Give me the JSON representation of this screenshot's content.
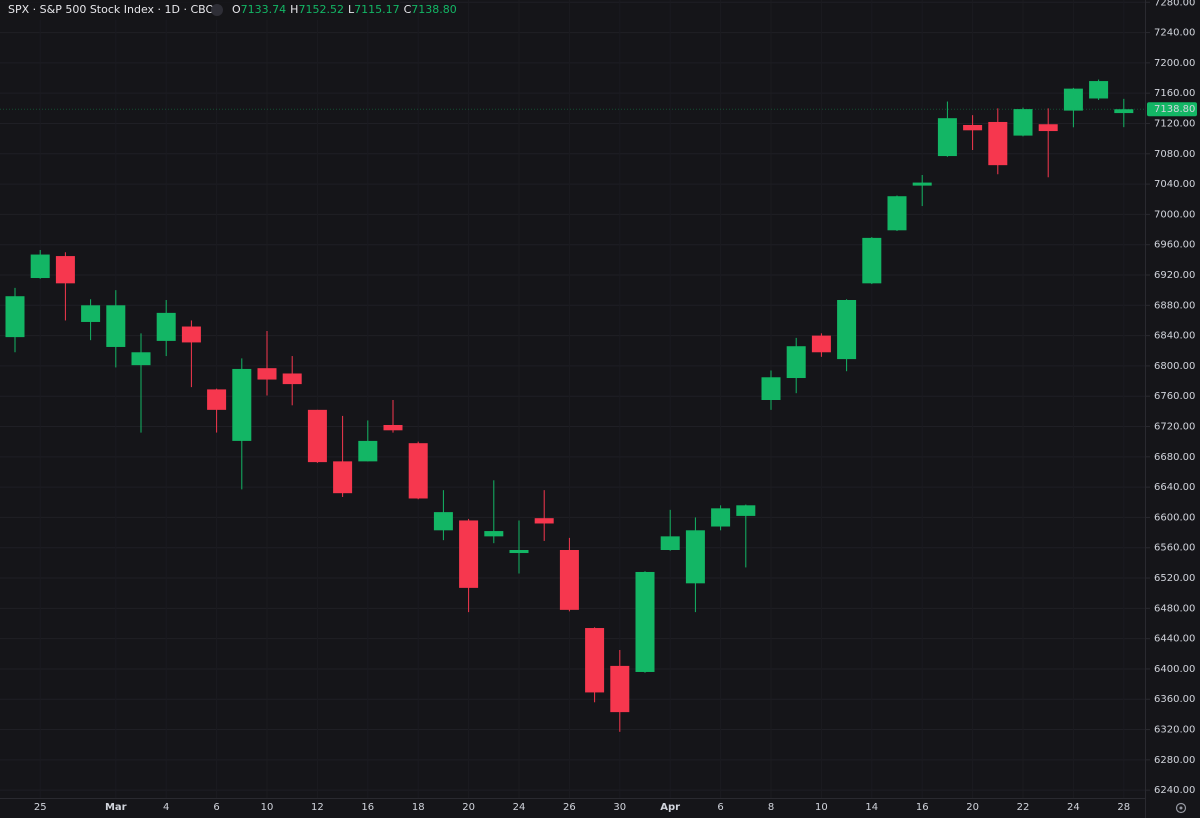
{
  "chart_data": {
    "type": "candlestick",
    "title": "SPX · S&P 500 Stock Index · 1D · CBOE",
    "legend_letters": [
      "O",
      "H",
      "L",
      "C"
    ],
    "legend_values": [
      "7133.74",
      "7152.52",
      "7115.17",
      "7138.80"
    ],
    "last_price_label": "7138.80",
    "categories": [
      null,
      "25",
      null,
      null,
      "Mar",
      null,
      "4",
      null,
      "6",
      null,
      "10",
      null,
      "12",
      null,
      "16",
      null,
      "18",
      null,
      "20",
      null,
      "24",
      null,
      "26",
      null,
      "30",
      null,
      "Apr",
      null,
      "6",
      null,
      "8",
      null,
      "10",
      null,
      "14",
      null,
      "16",
      null,
      "20",
      null,
      "22",
      null,
      "24",
      null,
      "28"
    ],
    "open": [
      6838,
      6916,
      6945,
      6858,
      6825,
      6801,
      6833,
      6852,
      6769,
      6701,
      6797,
      6790,
      6742,
      6674,
      6674,
      6722,
      6698,
      6583,
      6596,
      6575,
      6553,
      6599,
      6557,
      6454,
      6404,
      6396,
      6557,
      6513,
      6588,
      6602,
      6755,
      6784,
      6840,
      6809,
      6909,
      6979,
      7038,
      7077,
      7118,
      7122,
      7104,
      7119,
      7137,
      7153,
      7133.74
    ],
    "high": [
      6903,
      6953,
      6950,
      6888,
      6900,
      6843,
      6887,
      6860,
      6770,
      6810,
      6846,
      6813,
      6742,
      6734,
      6728,
      6755,
      6700,
      6636,
      6598,
      6649,
      6596,
      6636,
      6573,
      6455,
      6425,
      6529,
      6610,
      6600,
      6616,
      6617,
      6794,
      6837,
      6843,
      6888,
      6970,
      7025,
      7052,
      7149,
      7131,
      7140,
      7141,
      7140,
      7167,
      7178,
      7152.52
    ],
    "low": [
      6818,
      6915,
      6860,
      6834,
      6798,
      6712,
      6813,
      6772,
      6712,
      6637,
      6761,
      6748,
      6672,
      6627,
      6674,
      6712,
      6624,
      6570,
      6475,
      6566,
      6526,
      6569,
      6476,
      6356,
      6317,
      6395,
      6556,
      6475,
      6583,
      6534,
      6742,
      6764,
      6812,
      6793,
      6908,
      6978,
      7011,
      7076,
      7085,
      7053,
      7103,
      7049,
      7115,
      7151,
      7115.17
    ],
    "close": [
      6892,
      6947,
      6909,
      6880,
      6880,
      6818,
      6870,
      6831,
      6742,
      6796,
      6782,
      6776,
      6673,
      6632,
      6701,
      6715,
      6625,
      6607,
      6507,
      6582,
      6557,
      6592,
      6478,
      6369,
      6343,
      6528,
      6575,
      6583,
      6612,
      6616,
      6785,
      6826,
      6818,
      6887,
      6969,
      7024,
      7042,
      7127,
      7111,
      7065,
      7139,
      7110,
      7166,
      7176,
      7138.8
    ],
    "up_color": "#13b665",
    "down_color": "#f6374e",
    "ylim": [
      6227,
      7283
    ],
    "yticks": [
      {
        "value": 6240,
        "label": "6240.00"
      },
      {
        "value": 6280,
        "label": "6280.00"
      },
      {
        "value": 6320,
        "label": "6320.00"
      },
      {
        "value": 6360,
        "label": "6360.00"
      },
      {
        "value": 6400,
        "label": "6400.00"
      },
      {
        "value": 6440,
        "label": "6440.00"
      },
      {
        "value": 6480,
        "label": "6480.00"
      },
      {
        "value": 6520,
        "label": "6520.00"
      },
      {
        "value": 6560,
        "label": "6560.00"
      },
      {
        "value": 6600,
        "label": "6600.00"
      },
      {
        "value": 6640,
        "label": "6640.00"
      },
      {
        "value": 6680,
        "label": "6680.00"
      },
      {
        "value": 6720,
        "label": "6720.00"
      },
      {
        "value": 6760,
        "label": "6760.00"
      },
      {
        "value": 6800,
        "label": "6800.00"
      },
      {
        "value": 6840,
        "label": "6840.00"
      },
      {
        "value": 6880,
        "label": "6880.00"
      },
      {
        "value": 6920,
        "label": "6920.00"
      },
      {
        "value": 6960,
        "label": "6960.00"
      },
      {
        "value": 7000,
        "label": "7000.00"
      },
      {
        "value": 7040,
        "label": "7040.00"
      },
      {
        "value": 7080,
        "label": "7080.00"
      },
      {
        "value": 7120,
        "label": "7120.00"
      },
      {
        "value": 7160,
        "label": "7160.00"
      },
      {
        "value": 7200,
        "label": "7200.00"
      },
      {
        "value": 7240,
        "label": "7240.00"
      },
      {
        "value": 7280,
        "label": "7280.00"
      }
    ],
    "grid": true
  }
}
